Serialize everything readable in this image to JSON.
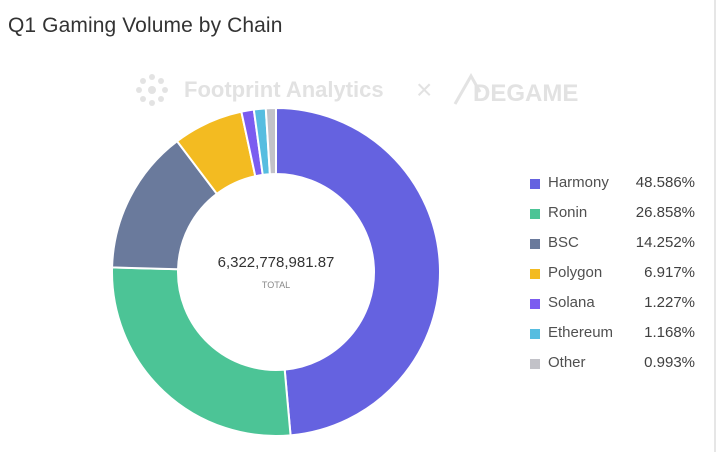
{
  "title": "Q1 Gaming Volume by Chain",
  "watermark": {
    "brand": "Footprint Analytics",
    "separator": "×",
    "partner": "DEGAME"
  },
  "chart_data": {
    "type": "pie",
    "title": "Q1 Gaming Volume by Chain",
    "donut": true,
    "center_value": "6,322,778,981.87",
    "center_label": "TOTAL",
    "legend_position": "right",
    "categories": [
      "Harmony",
      "Ronin",
      "BSC",
      "Polygon",
      "Solana",
      "Ethereum",
      "Other"
    ],
    "values": [
      48.586,
      26.858,
      14.252,
      6.917,
      1.227,
      1.168,
      0.993
    ],
    "value_labels": [
      "48.586%",
      "26.858%",
      "14.252%",
      "6.917%",
      "1.227%",
      "1.168%",
      "0.993%"
    ],
    "colors": [
      "#6562e0",
      "#4cc496",
      "#6a7a9c",
      "#f3bb21",
      "#7b5cf0",
      "#56bde0",
      "#c2c2c8"
    ]
  }
}
